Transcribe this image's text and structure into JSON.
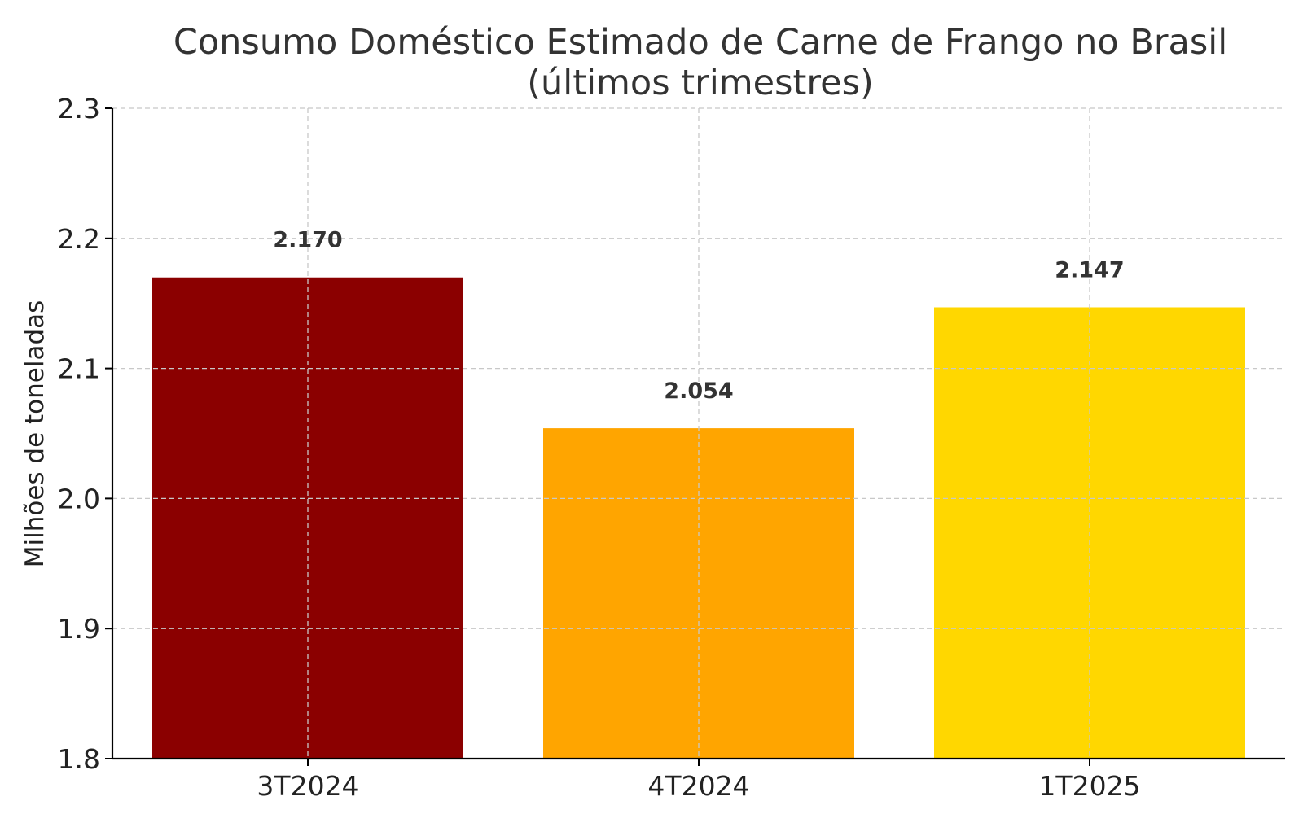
{
  "chart_data": {
    "type": "bar",
    "title_line1": "Consumo Doméstico Estimado de Carne de Frango no Brasil",
    "title_line2": "(últimos trimestres)",
    "xlabel": "",
    "ylabel": "Milhões de toneladas",
    "categories": [
      "3T2024",
      "4T2024",
      "1T2025"
    ],
    "values": [
      2.17,
      2.054,
      2.147
    ],
    "value_labels": [
      "2.170",
      "2.054",
      "2.147"
    ],
    "colors": [
      "#8B0000",
      "#FFA500",
      "#FFD700"
    ],
    "ylim": [
      1.8,
      2.3
    ],
    "yticks": [
      1.8,
      1.9,
      2.0,
      2.1,
      2.2,
      2.3
    ],
    "ytick_labels": [
      "1.8",
      "1.9",
      "2.0",
      "2.1",
      "2.2",
      "2.3"
    ],
    "grid": true,
    "legend": false
  }
}
